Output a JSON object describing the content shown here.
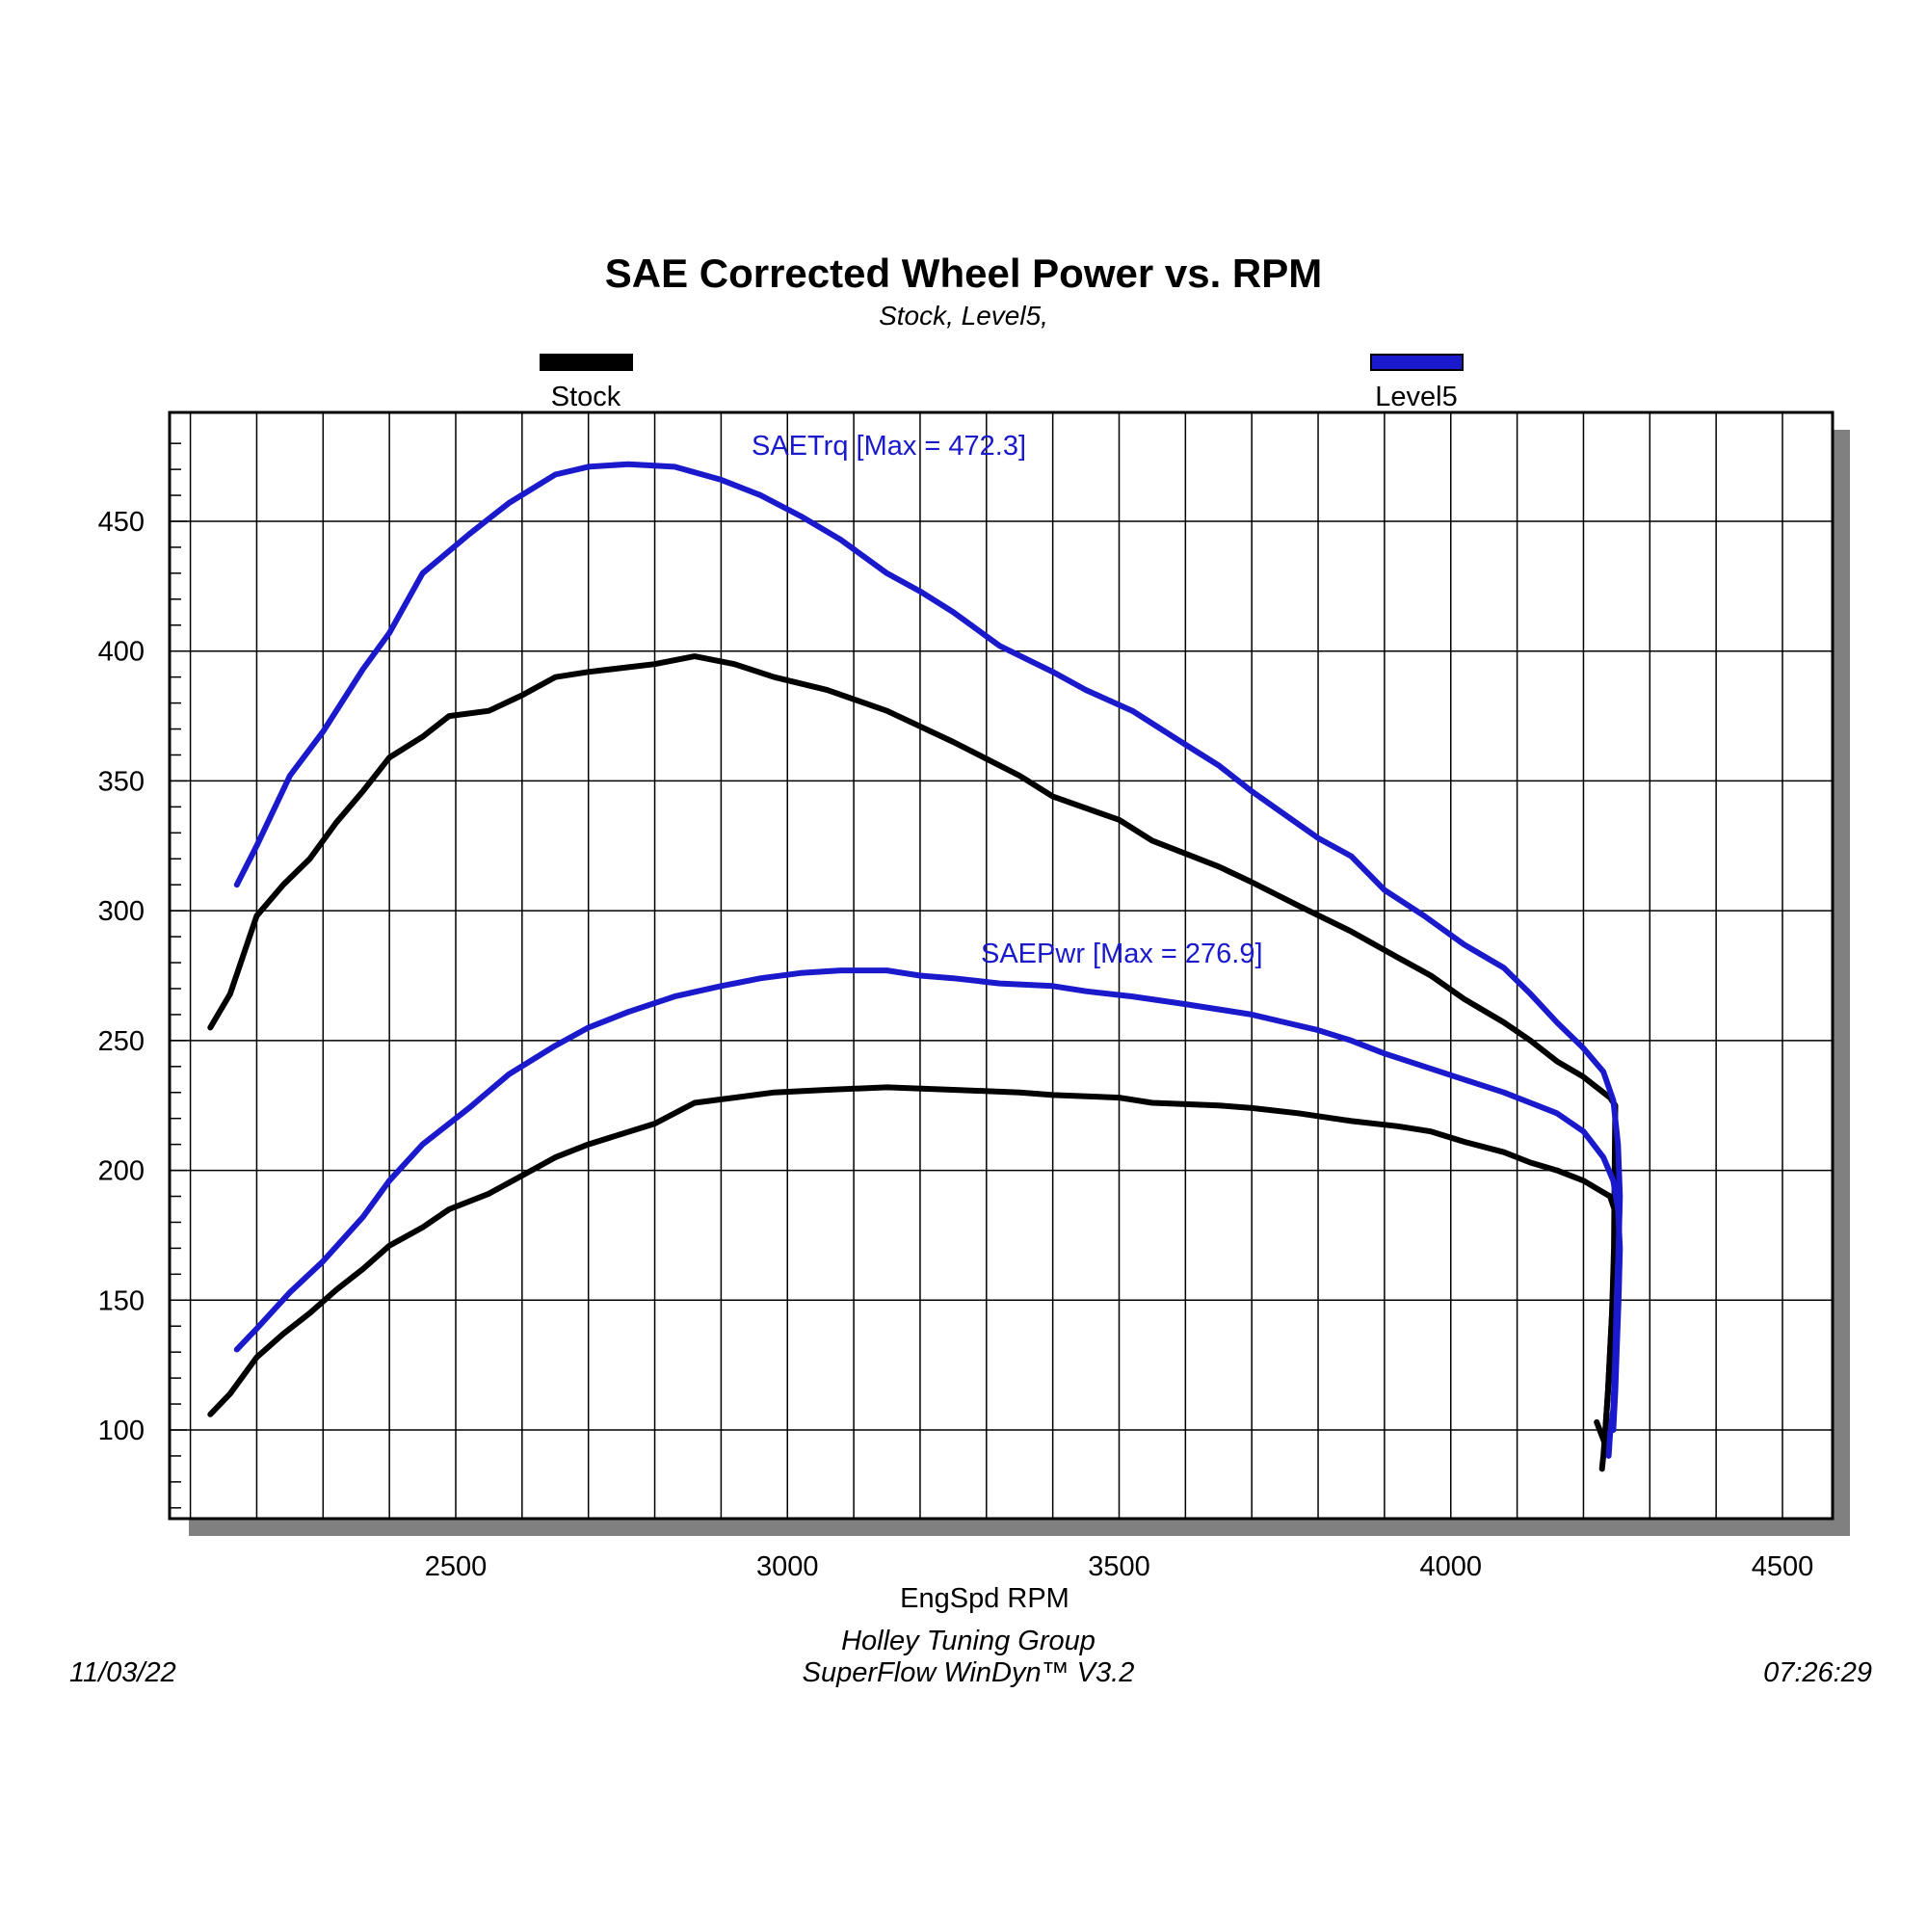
{
  "chart_data": {
    "type": "line",
    "title": "SAE Corrected Wheel Power vs. RPM",
    "subtitle": "Stock, Level5,",
    "xlabel": "EngSpd RPM",
    "ylabel": "",
    "xlim": [
      2000,
      4500
    ],
    "ylim": [
      60,
      480
    ],
    "x_ticks": [
      "2500",
      "3000",
      "3500",
      "4000",
      "4500"
    ],
    "y_ticks": [
      "100",
      "150",
      "200",
      "250",
      "300",
      "350",
      "400",
      "450"
    ],
    "grid": true,
    "legend": [
      {
        "name": "Stock",
        "color": "#000000",
        "position": "top-left"
      },
      {
        "name": "Level5",
        "color": "#1a1acc",
        "position": "top-right"
      }
    ],
    "annotations": [
      {
        "text": "SAETrq [Max = 472.3]",
        "color": "#1a1acc",
        "x": 2540,
        "y": 473
      },
      {
        "text": "SAEPwr [Max = 276.9]",
        "color": "#1a1acc",
        "x": 2880,
        "y": 278
      }
    ],
    "series": [
      {
        "name": "",
        "legend_ref": "Stock",
        "quantity": "SAETrq",
        "color": "#000000",
        "points": [
          [
            2130,
            255
          ],
          [
            2160,
            268
          ],
          [
            2200,
            298
          ],
          [
            2240,
            310
          ],
          [
            2280,
            320
          ],
          [
            2320,
            334
          ],
          [
            2360,
            346
          ],
          [
            2400,
            359
          ],
          [
            2450,
            367
          ],
          [
            2490,
            375
          ],
          [
            2550,
            377
          ],
          [
            2600,
            383
          ],
          [
            2650,
            390
          ],
          [
            2700,
            392
          ],
          [
            2800,
            395
          ],
          [
            2860,
            398
          ],
          [
            2920,
            395
          ],
          [
            2980,
            390
          ],
          [
            3060,
            385
          ],
          [
            3150,
            377
          ],
          [
            3250,
            365
          ],
          [
            3350,
            352
          ],
          [
            3400,
            344
          ],
          [
            3500,
            335
          ],
          [
            3550,
            327
          ],
          [
            3650,
            317
          ],
          [
            3700,
            311
          ],
          [
            3770,
            302
          ],
          [
            3850,
            292
          ],
          [
            3920,
            282
          ],
          [
            3970,
            275
          ],
          [
            4020,
            266
          ],
          [
            4080,
            257
          ],
          [
            4120,
            250
          ],
          [
            4160,
            242
          ],
          [
            4200,
            236
          ],
          [
            4220,
            232
          ],
          [
            4240,
            228
          ],
          [
            4248,
            225
          ],
          [
            4247,
            200
          ],
          [
            4246,
            170
          ],
          [
            4243,
            145
          ],
          [
            4240,
            130
          ],
          [
            4237,
            115
          ],
          [
            4233,
            100
          ],
          [
            4232,
            95
          ],
          [
            4220,
            103
          ]
        ]
      },
      {
        "name": "",
        "legend_ref": "Stock",
        "quantity": "SAEPwr",
        "color": "#000000",
        "points": [
          [
            2130,
            106
          ],
          [
            2160,
            114
          ],
          [
            2200,
            128
          ],
          [
            2240,
            137
          ],
          [
            2280,
            145
          ],
          [
            2320,
            154
          ],
          [
            2360,
            162
          ],
          [
            2400,
            171
          ],
          [
            2450,
            178
          ],
          [
            2490,
            185
          ],
          [
            2550,
            191
          ],
          [
            2600,
            198
          ],
          [
            2650,
            205
          ],
          [
            2700,
            210
          ],
          [
            2800,
            218
          ],
          [
            2860,
            226
          ],
          [
            2920,
            228
          ],
          [
            2980,
            230
          ],
          [
            3060,
            231
          ],
          [
            3150,
            232
          ],
          [
            3250,
            231
          ],
          [
            3350,
            230
          ],
          [
            3400,
            229
          ],
          [
            3500,
            228
          ],
          [
            3550,
            226
          ],
          [
            3650,
            225
          ],
          [
            3700,
            224
          ],
          [
            3770,
            222
          ],
          [
            3850,
            219
          ],
          [
            3920,
            217
          ],
          [
            3970,
            215
          ],
          [
            4020,
            211
          ],
          [
            4080,
            207
          ],
          [
            4120,
            203
          ],
          [
            4160,
            200
          ],
          [
            4200,
            196
          ],
          [
            4220,
            193
          ],
          [
            4240,
            190
          ],
          [
            4248,
            184
          ],
          [
            4247,
            175
          ],
          [
            4246,
            165
          ],
          [
            4243,
            145
          ],
          [
            4240,
            130
          ],
          [
            4237,
            115
          ],
          [
            4233,
            100
          ],
          [
            4230,
            90
          ],
          [
            4228,
            85
          ]
        ]
      },
      {
        "name": "",
        "legend_ref": "Level5",
        "quantity": "SAETrq",
        "color": "#1a1acc",
        "points": [
          [
            2170,
            310
          ],
          [
            2200,
            325
          ],
          [
            2250,
            352
          ],
          [
            2300,
            369
          ],
          [
            2360,
            393
          ],
          [
            2400,
            407
          ],
          [
            2450,
            430
          ],
          [
            2520,
            445
          ],
          [
            2580,
            457
          ],
          [
            2650,
            468
          ],
          [
            2700,
            471
          ],
          [
            2760,
            472
          ],
          [
            2830,
            471
          ],
          [
            2900,
            466
          ],
          [
            2960,
            460
          ],
          [
            3020,
            452
          ],
          [
            3080,
            443
          ],
          [
            3150,
            430
          ],
          [
            3200,
            423
          ],
          [
            3250,
            415
          ],
          [
            3320,
            402
          ],
          [
            3400,
            392
          ],
          [
            3450,
            385
          ],
          [
            3520,
            377
          ],
          [
            3600,
            364
          ],
          [
            3650,
            356
          ],
          [
            3700,
            346
          ],
          [
            3750,
            337
          ],
          [
            3800,
            328
          ],
          [
            3850,
            321
          ],
          [
            3900,
            308
          ],
          [
            3960,
            298
          ],
          [
            4020,
            287
          ],
          [
            4080,
            278
          ],
          [
            4120,
            268
          ],
          [
            4160,
            257
          ],
          [
            4200,
            247
          ],
          [
            4230,
            238
          ],
          [
            4245,
            227
          ],
          [
            4252,
            210
          ],
          [
            4255,
            190
          ],
          [
            4253,
            170
          ],
          [
            4250,
            150
          ],
          [
            4248,
            130
          ],
          [
            4246,
            115
          ],
          [
            4245,
            108
          ],
          [
            4240,
            98
          ],
          [
            4238,
            90
          ]
        ]
      },
      {
        "name": "",
        "legend_ref": "Level5",
        "quantity": "SAEPwr",
        "color": "#1a1acc",
        "points": [
          [
            2170,
            131
          ],
          [
            2200,
            139
          ],
          [
            2250,
            153
          ],
          [
            2300,
            165
          ],
          [
            2360,
            182
          ],
          [
            2400,
            196
          ],
          [
            2450,
            210
          ],
          [
            2520,
            224
          ],
          [
            2580,
            237
          ],
          [
            2650,
            248
          ],
          [
            2700,
            255
          ],
          [
            2760,
            261
          ],
          [
            2830,
            267
          ],
          [
            2900,
            271
          ],
          [
            2960,
            274
          ],
          [
            3020,
            276
          ],
          [
            3080,
            277
          ],
          [
            3150,
            277
          ],
          [
            3200,
            275
          ],
          [
            3250,
            274
          ],
          [
            3320,
            272
          ],
          [
            3400,
            271
          ],
          [
            3450,
            269
          ],
          [
            3520,
            267
          ],
          [
            3600,
            264
          ],
          [
            3650,
            262
          ],
          [
            3700,
            260
          ],
          [
            3750,
            257
          ],
          [
            3800,
            254
          ],
          [
            3850,
            250
          ],
          [
            3900,
            245
          ],
          [
            3960,
            240
          ],
          [
            4020,
            235
          ],
          [
            4080,
            230
          ],
          [
            4120,
            226
          ],
          [
            4160,
            222
          ],
          [
            4200,
            215
          ],
          [
            4230,
            205
          ],
          [
            4245,
            196
          ],
          [
            4252,
            185
          ],
          [
            4255,
            170
          ],
          [
            4253,
            150
          ],
          [
            4250,
            130
          ],
          [
            4248,
            115
          ],
          [
            4246,
            105
          ],
          [
            4245,
            100
          ]
        ]
      }
    ]
  },
  "footer": {
    "date": "11/03/22",
    "line1": "Holley Tuning Group",
    "line2": "SuperFlow WinDyn™  V3.2",
    "time": "07:26:29"
  }
}
